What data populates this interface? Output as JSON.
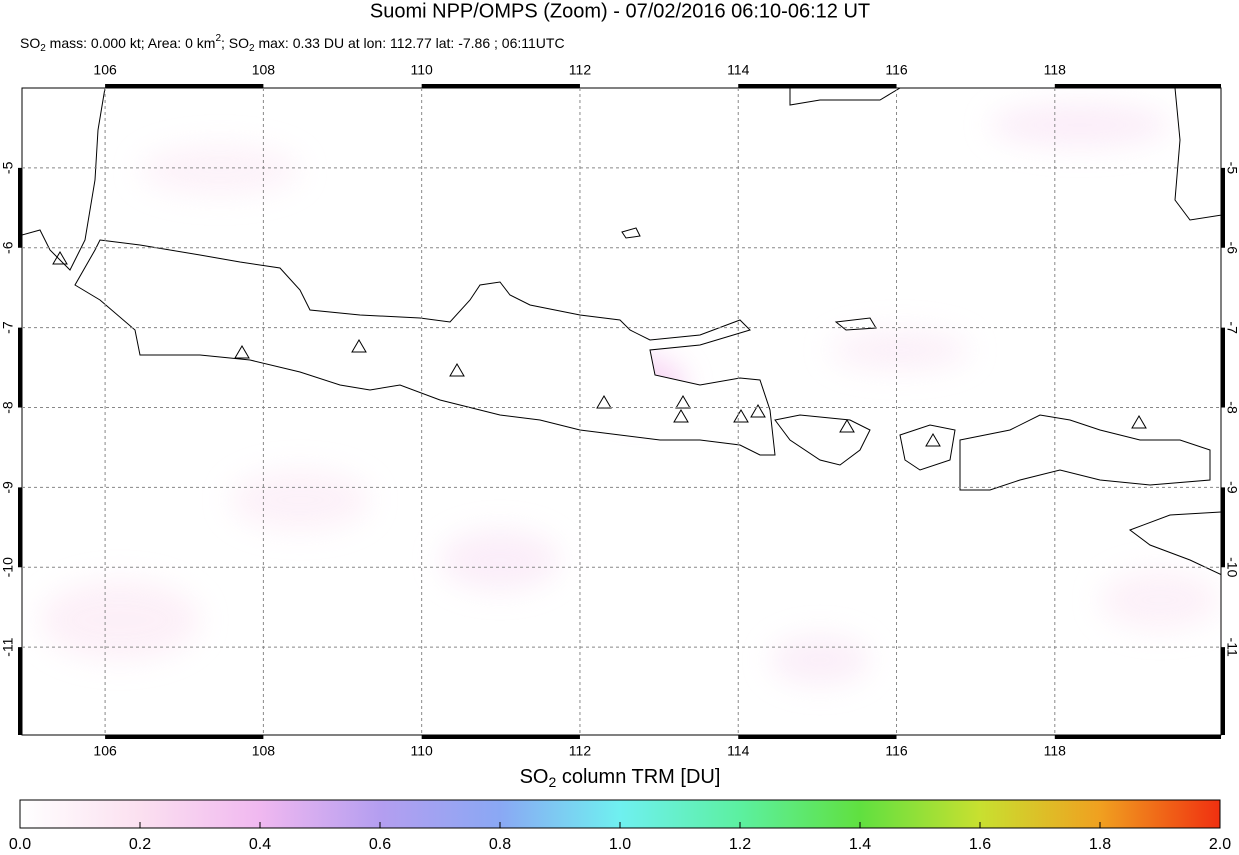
{
  "title": "Suomi NPP/OMPS (Zoom) - 07/02/2016 06:10-06:12 UT",
  "subtitle": [
    "SO",
    "2",
    " mass: 0.000 kt; Area: 0 km",
    "2",
    "; SO",
    "2",
    " max: 0.33 DU at lon: 112.77 lat: -7.86 ; 06:11UTC"
  ],
  "map": {
    "xlim": [
      104.95,
      120.1
    ],
    "ylim": [
      -12.1,
      -4
    ],
    "xticks": [
      106,
      108,
      110,
      112,
      114,
      116,
      118
    ],
    "yticks": [
      -5,
      -6,
      -7,
      -8,
      -9,
      -10,
      -11
    ],
    "grid": true
  },
  "colorbar": {
    "label": [
      "SO",
      "2",
      " column TRM [DU]"
    ],
    "lim": [
      0,
      2
    ],
    "ticks": [
      {
        "value": 0,
        "label": "0.0"
      },
      {
        "value": 0.2,
        "label": "0.2"
      },
      {
        "value": 0.4,
        "label": "0.4"
      },
      {
        "value": 0.6,
        "label": "0.6"
      },
      {
        "value": 0.8,
        "label": "0.8"
      },
      {
        "value": 1,
        "label": "1.0"
      },
      {
        "value": 1.2,
        "label": "1.2"
      },
      {
        "value": 1.4,
        "label": "1.4"
      },
      {
        "value": 1.6,
        "label": "1.6"
      },
      {
        "value": 1.8,
        "label": "1.8"
      },
      {
        "value": 2,
        "label": "2.0"
      }
    ]
  }
}
